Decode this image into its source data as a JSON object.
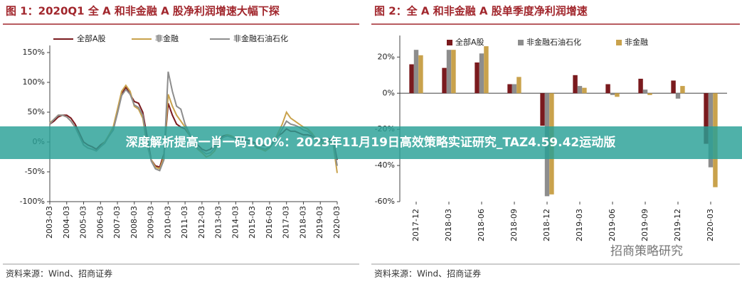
{
  "chart_data": [
    {
      "type": "line",
      "title": "图 1：2020Q1 全 A 和非金融 A 股净利润增速大幅下探",
      "source": "资料来源：Wind、招商证券",
      "categories": [
        "2003-03",
        null,
        null,
        null,
        "2004-03",
        null,
        null,
        null,
        "2005-03",
        null,
        null,
        null,
        "2006-03",
        null,
        null,
        null,
        "2007-03",
        null,
        null,
        null,
        "2008-03",
        null,
        null,
        null,
        "2009-03",
        null,
        null,
        null,
        "2010-03",
        null,
        null,
        null,
        "2011-03",
        null,
        null,
        null,
        "2012-03",
        null,
        null,
        null,
        "2013-03",
        null,
        null,
        null,
        "2014-03",
        null,
        null,
        null,
        "2015-03",
        null,
        null,
        null,
        "2016-03",
        null,
        null,
        null,
        "2017-03",
        null,
        null,
        null,
        "2018-03",
        null,
        null,
        null,
        "2019-03",
        null,
        null,
        null,
        "2020-03"
      ],
      "series": [
        {
          "name": "全部A股",
          "color": "#7a1a1e",
          "values": [
            30,
            35,
            42,
            45,
            45,
            40,
            30,
            15,
            0,
            -5,
            -8,
            -12,
            -5,
            0,
            10,
            20,
            50,
            80,
            92,
            80,
            68,
            65,
            50,
            10,
            -30,
            -40,
            -42,
            -20,
            65,
            45,
            30,
            25,
            22,
            12,
            3,
            -5,
            -12,
            -15,
            -12,
            -5,
            5,
            10,
            12,
            10,
            5,
            5,
            4,
            3,
            0,
            -3,
            -5,
            -6,
            -5,
            0,
            10,
            15,
            22,
            18,
            18,
            15,
            12,
            12,
            10,
            4,
            3,
            6,
            5,
            4,
            -30
          ]
        },
        {
          "name": "非金融",
          "color": "#c9a24c",
          "values": [
            32,
            38,
            45,
            45,
            42,
            35,
            25,
            10,
            -5,
            -10,
            -12,
            -15,
            -8,
            0,
            12,
            25,
            55,
            85,
            95,
            85,
            60,
            55,
            40,
            -5,
            -30,
            -42,
            -45,
            -25,
            80,
            60,
            45,
            35,
            25,
            12,
            -2,
            -12,
            -18,
            -25,
            -22,
            -15,
            0,
            8,
            12,
            10,
            5,
            3,
            0,
            -3,
            -5,
            -10,
            -12,
            -15,
            -10,
            0,
            15,
            30,
            50,
            40,
            35,
            30,
            25,
            22,
            15,
            5,
            -5,
            0,
            0,
            -2,
            -52
          ]
        },
        {
          "name": "非金融石油石化",
          "color": "#8d8d8d",
          "values": [
            30,
            38,
            45,
            45,
            42,
            35,
            25,
            10,
            -5,
            -10,
            -12,
            -15,
            -8,
            -2,
            10,
            20,
            48,
            78,
            88,
            80,
            62,
            58,
            45,
            0,
            -32,
            -45,
            -48,
            -30,
            118,
            85,
            60,
            55,
            30,
            15,
            0,
            -10,
            -15,
            -20,
            -18,
            -10,
            2,
            8,
            10,
            8,
            5,
            3,
            0,
            -2,
            -3,
            -8,
            -10,
            -12,
            -8,
            0,
            10,
            22,
            35,
            30,
            28,
            25,
            20,
            18,
            12,
            5,
            0,
            2,
            2,
            0,
            -40
          ]
        }
      ],
      "ylim": [
        -100,
        150
      ],
      "yticks": [
        {
          "value": -100,
          "label": "-100%"
        },
        {
          "value": -50,
          "label": "-50%"
        },
        {
          "value": 0,
          "label": "0%"
        },
        {
          "value": 50,
          "label": "50%"
        },
        {
          "value": 100,
          "label": "100%"
        },
        {
          "value": 150,
          "label": "150%"
        }
      ],
      "legend": "top"
    },
    {
      "type": "bar",
      "title": "图 2：全 A 和非金融 A 股单季度净利润增速",
      "source": "资料来源：Wind、招商证券",
      "categories": [
        "2017-12",
        "2018-03",
        "2018-06",
        "2018-09",
        "2018-12",
        "2019-03",
        "2019-06",
        "2019-09",
        "2019-12",
        "2020-03"
      ],
      "series": [
        {
          "name": "全部A股",
          "color": "#7a1a1e",
          "values": [
            16,
            14,
            17,
            5,
            -18,
            10,
            5,
            8,
            7,
            -28
          ]
        },
        {
          "name": "非金融石油石化",
          "color": "#8d8d8d",
          "values": [
            24,
            24,
            22,
            5,
            -57,
            4,
            -1,
            2,
            -3,
            -41
          ]
        },
        {
          "name": "非金融",
          "color": "#c9a24c",
          "values": [
            21,
            24,
            26,
            9,
            -56,
            3,
            -2,
            -1,
            4,
            -52
          ]
        }
      ],
      "ylim": [
        -60,
        28
      ],
      "yticks": [
        {
          "value": -60,
          "label": "-60%"
        },
        {
          "value": -40,
          "label": "-40%"
        },
        {
          "value": -20,
          "label": "-20%"
        },
        {
          "value": 0,
          "label": "0%"
        },
        {
          "value": 20,
          "label": "20%"
        }
      ],
      "legend": "top"
    }
  ],
  "banner": "深度解析提高一肖一码100%：2023年11月19日高效策略实证研究_TAZ4.59.42运动版",
  "watermark": "招商策略研究"
}
